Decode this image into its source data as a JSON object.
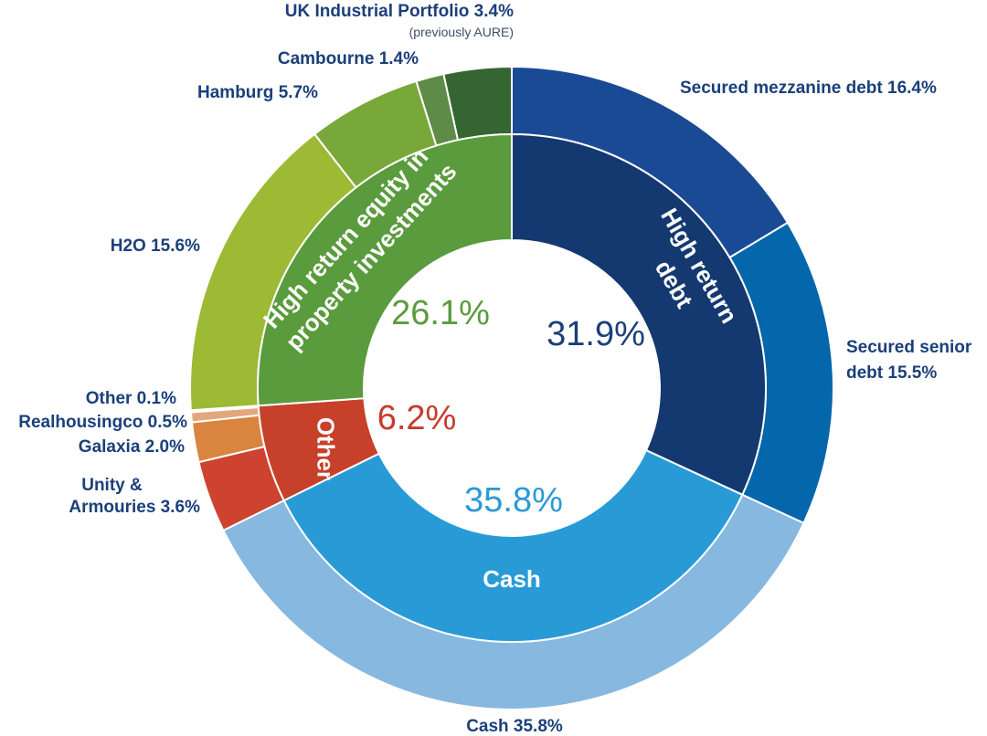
{
  "chart_data": {
    "type": "donut",
    "title": "",
    "inner_ring": [
      {
        "label": "High return debt",
        "value": 31.9,
        "value_label": "31.9%",
        "color": "#143870",
        "label_color": "#1b3f7a"
      },
      {
        "label": "Cash",
        "value": 35.8,
        "value_label": "35.8%",
        "color": "#289bd7",
        "label_color": "#2a9ad6"
      },
      {
        "label": "Other",
        "value": 6.2,
        "value_label": "6.2%",
        "color": "#c6402a",
        "label_color": "#c83a2b"
      },
      {
        "label": "High return equity in property investments",
        "value": 26.1,
        "value_label": "26.1%",
        "color": "#5a9b3d",
        "label_color": "#5a9b3d"
      }
    ],
    "outer_ring": [
      {
        "label": "Secured mezzanine debt 16.4%",
        "value": 16.4,
        "color": "#1b4a95",
        "group": "High return debt"
      },
      {
        "label": "Secured senior debt 15.5%",
        "value": 15.5,
        "color": "#0466ab",
        "group": "High return debt"
      },
      {
        "label": "Cash 35.8%",
        "value": 35.8,
        "color": "#86b8e0",
        "group": "Cash"
      },
      {
        "label": "Unity & Armouries 3.6%",
        "value": 3.6,
        "color": "#cd4330",
        "group": "Other"
      },
      {
        "label": "Galaxia 2.0%",
        "value": 2.0,
        "color": "#d9843f",
        "group": "Other"
      },
      {
        "label": "Realhousingco 0.5%",
        "value": 0.5,
        "color": "#e4a77c",
        "group": "Other"
      },
      {
        "label": "Other 0.1%",
        "value": 0.1,
        "color": "#efcbb0",
        "group": "Other"
      },
      {
        "label": "H2O 15.6%",
        "value": 15.6,
        "color": "#9cba33",
        "group": "High return equity in property investments"
      },
      {
        "label": "Hamburg 5.7%",
        "value": 5.7,
        "color": "#78a83a",
        "group": "High return equity in property investments"
      },
      {
        "label": "Cambourne 1.4%",
        "value": 1.4,
        "color": "#5e8c48",
        "group": "High return equity in property investments"
      },
      {
        "label": "UK Industrial Portfolio 3.4%",
        "sublabel": "(previously AURE)",
        "value": 3.4,
        "color": "#356530",
        "group": "High return equity in property investments"
      }
    ],
    "inner_ring_texts": {
      "debt": [
        "High return",
        "debt"
      ],
      "cash": "Cash",
      "other": "Other",
      "equity": [
        "High return equity in",
        "property investments"
      ]
    },
    "label_color": "#1b3f7a",
    "sublabel_color": "#3d4f6a"
  }
}
